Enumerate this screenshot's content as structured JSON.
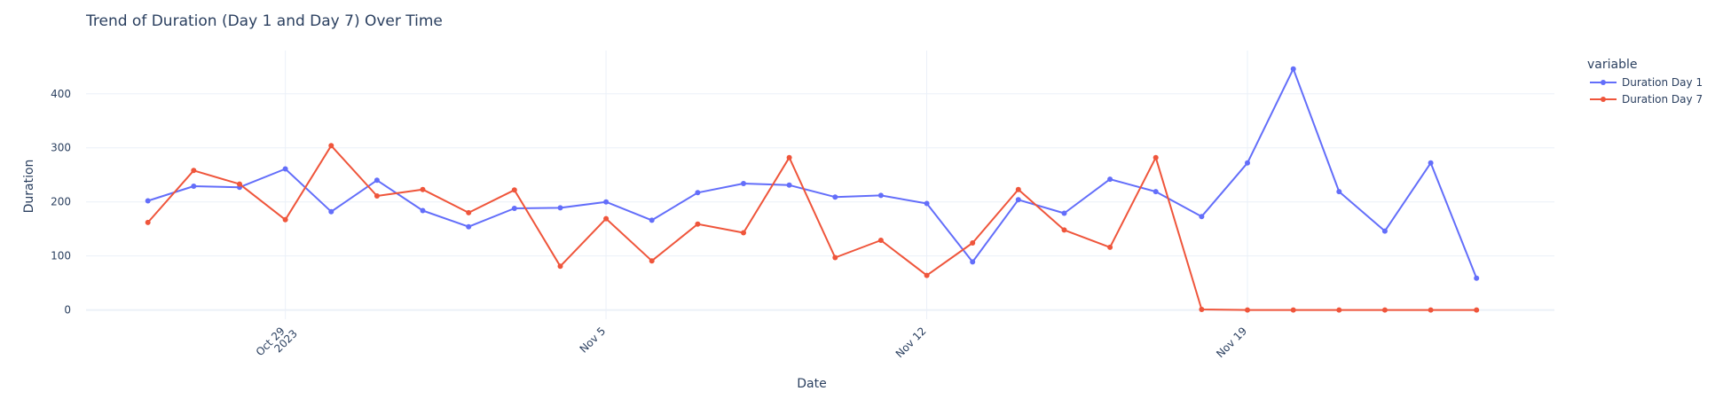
{
  "chart_data": {
    "type": "line",
    "title": "Trend of Duration (Day 1 and Day 7) Over Time",
    "xlabel": "Date",
    "ylabel": "Duration",
    "ylim": [
      -17,
      480
    ],
    "yticks": [
      0,
      100,
      200,
      300,
      400
    ],
    "xticks": [
      {
        "day": 3,
        "label1": "Oct 29",
        "label2": "2023"
      },
      {
        "day": 10,
        "label1": "Nov 5",
        "label2": ""
      },
      {
        "day": 17,
        "label1": "Nov 12",
        "label2": ""
      },
      {
        "day": 24,
        "label1": "Nov 19",
        "label2": ""
      }
    ],
    "x_start_date": "2023-10-26",
    "x": [
      0,
      1,
      2,
      3,
      4,
      5,
      6,
      7,
      8,
      9,
      10,
      11,
      12,
      13,
      14,
      15,
      16,
      17,
      18,
      19,
      20,
      21,
      22,
      23,
      24,
      25,
      26,
      27,
      28,
      29
    ],
    "xlim": [
      -1.35,
      30.7
    ],
    "legend_title": "variable",
    "series": [
      {
        "name": "Duration Day 1",
        "color": "#636efa",
        "values": [
          202,
          229,
          227,
          261,
          182,
          240,
          184,
          154,
          188,
          189,
          200,
          166,
          217,
          234,
          231,
          209,
          212,
          197,
          89,
          204,
          179,
          242,
          219,
          173,
          272,
          446,
          219,
          146,
          272,
          59
        ]
      },
      {
        "name": "Duration Day 7",
        "color": "#ef553b",
        "values": [
          162,
          258,
          233,
          167,
          304,
          211,
          223,
          180,
          222,
          81,
          169,
          91,
          159,
          143,
          282,
          97,
          129,
          64,
          124,
          223,
          148,
          116,
          282,
          1,
          0,
          0,
          0,
          0,
          0,
          0
        ]
      }
    ]
  }
}
